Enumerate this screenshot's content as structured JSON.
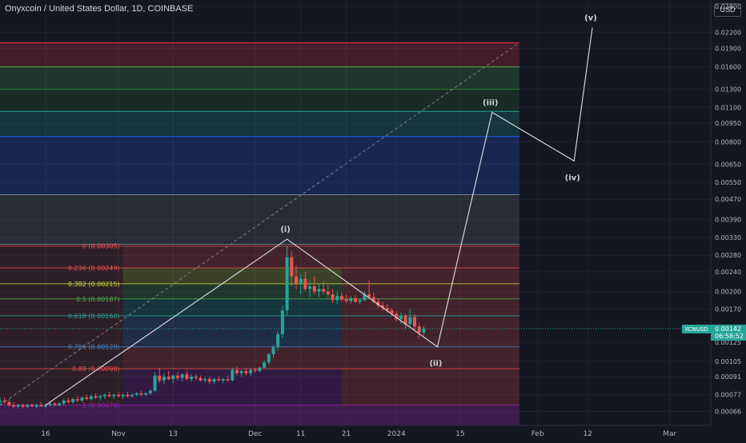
{
  "header": {
    "title": "Onyxcoin / United States Dollar, 1D, COINBASE",
    "currency_label": "USD"
  },
  "price_tag": {
    "symbol": "XCNUSD",
    "price": "0.00142",
    "countdown": "06:58:52",
    "color": "#26a69a"
  },
  "colors": {
    "background": "#131722",
    "grid": "#1f2330",
    "up": "#26a69a",
    "down": "#ef5350",
    "text": "#b2b5be",
    "wave": "#d1d4dc"
  },
  "chart_data": {
    "type": "candlestick",
    "title": "Onyxcoin / United States Dollar, 1D, COINBASE",
    "xlabel": "",
    "ylabel": "",
    "y_scale": "log",
    "ylim": [
      0.00058,
      0.0297
    ],
    "xlim": [
      "2023-10-06",
      "2024-03-10"
    ],
    "grid": true,
    "y_ticks": [
      "0.02800",
      "0.02200",
      "0.01900",
      "0.01600",
      "0.01300",
      "0.01100",
      "0.00950",
      "0.00800",
      "0.00650",
      "0.00550",
      "0.00470",
      "0.00390",
      "0.00330",
      "0.00280",
      "0.00240",
      "0.00200",
      "0.00170",
      "0.00125",
      "0.00105",
      "0.00091",
      "0.00077",
      "0.00066"
    ],
    "x_ticks": [
      {
        "date": "2023-10-16",
        "label": "16"
      },
      {
        "date": "2023-11-01",
        "label": "Nov"
      },
      {
        "date": "2023-11-13",
        "label": "13"
      },
      {
        "date": "2023-12-01",
        "label": "Dec"
      },
      {
        "date": "2023-12-11",
        "label": "11"
      },
      {
        "date": "2023-12-21",
        "label": "21"
      },
      {
        "date": "2024-01-01",
        "label": "2024"
      },
      {
        "date": "2024-01-15",
        "label": "15"
      },
      {
        "date": "2024-02-01",
        "label": "Feb"
      },
      {
        "date": "2024-02-12",
        "label": "12"
      },
      {
        "date": "2024-03-01",
        "label": "Mar"
      }
    ],
    "candles": [
      {
        "d": "2023-10-06",
        "o": 0.00072,
        "h": 0.00075,
        "l": 0.0007,
        "c": 0.00073
      },
      {
        "d": "2023-10-07",
        "o": 0.00073,
        "h": 0.00075,
        "l": 0.00071,
        "c": 0.00072
      },
      {
        "d": "2023-10-08",
        "o": 0.00072,
        "h": 0.00074,
        "l": 0.00069,
        "c": 0.0007
      },
      {
        "d": "2023-10-09",
        "o": 0.0007,
        "h": 0.00072,
        "l": 0.00068,
        "c": 0.00069
      },
      {
        "d": "2023-10-10",
        "o": 0.00069,
        "h": 0.00071,
        "l": 0.00068,
        "c": 0.0007
      },
      {
        "d": "2023-10-11",
        "o": 0.0007,
        "h": 0.00071,
        "l": 0.00068,
        "c": 0.00069
      },
      {
        "d": "2023-10-12",
        "o": 0.00069,
        "h": 0.00071,
        "l": 0.00068,
        "c": 0.0007
      },
      {
        "d": "2023-10-13",
        "o": 0.0007,
        "h": 0.00071,
        "l": 0.00069,
        "c": 0.00069
      },
      {
        "d": "2023-10-14",
        "o": 0.00069,
        "h": 0.00071,
        "l": 0.00068,
        "c": 0.0007
      },
      {
        "d": "2023-10-15",
        "o": 0.0007,
        "h": 0.00072,
        "l": 0.00069,
        "c": 0.00069
      },
      {
        "d": "2023-10-16",
        "o": 0.00069,
        "h": 0.00071,
        "l": 0.00068,
        "c": 0.0007
      },
      {
        "d": "2023-10-17",
        "o": 0.0007,
        "h": 0.00072,
        "l": 0.00069,
        "c": 0.00071
      },
      {
        "d": "2023-10-18",
        "o": 0.00071,
        "h": 0.00072,
        "l": 0.00069,
        "c": 0.0007
      },
      {
        "d": "2023-10-19",
        "o": 0.0007,
        "h": 0.00072,
        "l": 0.00069,
        "c": 0.00071
      },
      {
        "d": "2023-10-20",
        "o": 0.00071,
        "h": 0.00074,
        "l": 0.0007,
        "c": 0.00073
      },
      {
        "d": "2023-10-21",
        "o": 0.00073,
        "h": 0.00075,
        "l": 0.00071,
        "c": 0.00072
      },
      {
        "d": "2023-10-22",
        "o": 0.00072,
        "h": 0.00075,
        "l": 0.00071,
        "c": 0.00074
      },
      {
        "d": "2023-10-23",
        "o": 0.00074,
        "h": 0.00076,
        "l": 0.00072,
        "c": 0.00073
      },
      {
        "d": "2023-10-24",
        "o": 0.00073,
        "h": 0.00076,
        "l": 0.00072,
        "c": 0.00075
      },
      {
        "d": "2023-10-25",
        "o": 0.00075,
        "h": 0.00077,
        "l": 0.00073,
        "c": 0.00074
      },
      {
        "d": "2023-10-26",
        "o": 0.00074,
        "h": 0.00077,
        "l": 0.00073,
        "c": 0.00076
      },
      {
        "d": "2023-10-27",
        "o": 0.00076,
        "h": 0.00078,
        "l": 0.00074,
        "c": 0.00075
      },
      {
        "d": "2023-10-28",
        "o": 0.00075,
        "h": 0.00077,
        "l": 0.00073,
        "c": 0.00076
      },
      {
        "d": "2023-10-29",
        "o": 0.00076,
        "h": 0.00078,
        "l": 0.00074,
        "c": 0.00077
      },
      {
        "d": "2023-10-30",
        "o": 0.00077,
        "h": 0.00079,
        "l": 0.00075,
        "c": 0.00076
      },
      {
        "d": "2023-10-31",
        "o": 0.00076,
        "h": 0.00078,
        "l": 0.00074,
        "c": 0.00077
      },
      {
        "d": "2023-11-01",
        "o": 0.00077,
        "h": 0.00079,
        "l": 0.00075,
        "c": 0.00076
      },
      {
        "d": "2023-11-02",
        "o": 0.00076,
        "h": 0.00078,
        "l": 0.00074,
        "c": 0.00077
      },
      {
        "d": "2023-11-03",
        "o": 0.00077,
        "h": 0.00079,
        "l": 0.00075,
        "c": 0.00076
      },
      {
        "d": "2023-11-04",
        "o": 0.00076,
        "h": 0.00078,
        "l": 0.00075,
        "c": 0.00077
      },
      {
        "d": "2023-11-05",
        "o": 0.00077,
        "h": 0.00079,
        "l": 0.00076,
        "c": 0.00078
      },
      {
        "d": "2023-11-06",
        "o": 0.00078,
        "h": 0.0008,
        "l": 0.00076,
        "c": 0.00077
      },
      {
        "d": "2023-11-07",
        "o": 0.00077,
        "h": 0.00079,
        "l": 0.00076,
        "c": 0.00078
      },
      {
        "d": "2023-11-08",
        "o": 0.00078,
        "h": 0.00081,
        "l": 0.00077,
        "c": 0.0008
      },
      {
        "d": "2023-11-09",
        "o": 0.0008,
        "h": 0.00095,
        "l": 0.00079,
        "c": 0.00092
      },
      {
        "d": "2023-11-10",
        "o": 0.00092,
        "h": 0.00099,
        "l": 0.00086,
        "c": 0.00088
      },
      {
        "d": "2023-11-11",
        "o": 0.00088,
        "h": 0.00094,
        "l": 0.00085,
        "c": 0.00091
      },
      {
        "d": "2023-11-12",
        "o": 0.00091,
        "h": 0.00096,
        "l": 0.00088,
        "c": 0.00089
      },
      {
        "d": "2023-11-13",
        "o": 0.00089,
        "h": 0.00093,
        "l": 0.00086,
        "c": 0.00092
      },
      {
        "d": "2023-11-14",
        "o": 0.00092,
        "h": 0.00095,
        "l": 0.00088,
        "c": 0.0009
      },
      {
        "d": "2023-11-15",
        "o": 0.0009,
        "h": 0.00094,
        "l": 0.00087,
        "c": 0.00093
      },
      {
        "d": "2023-11-16",
        "o": 0.00093,
        "h": 0.00096,
        "l": 0.00088,
        "c": 0.00089
      },
      {
        "d": "2023-11-17",
        "o": 0.00089,
        "h": 0.00093,
        "l": 0.00087,
        "c": 0.00091
      },
      {
        "d": "2023-11-18",
        "o": 0.00091,
        "h": 0.00093,
        "l": 0.00088,
        "c": 0.0009
      },
      {
        "d": "2023-11-19",
        "o": 0.0009,
        "h": 0.00092,
        "l": 0.00087,
        "c": 0.00088
      },
      {
        "d": "2023-11-20",
        "o": 0.00088,
        "h": 0.00091,
        "l": 0.00086,
        "c": 0.00089
      },
      {
        "d": "2023-11-21",
        "o": 0.00089,
        "h": 0.00091,
        "l": 0.00085,
        "c": 0.00087
      },
      {
        "d": "2023-11-22",
        "o": 0.00087,
        "h": 0.0009,
        "l": 0.00085,
        "c": 0.00089
      },
      {
        "d": "2023-11-23",
        "o": 0.00089,
        "h": 0.00091,
        "l": 0.00087,
        "c": 0.00088
      },
      {
        "d": "2023-11-24",
        "o": 0.00088,
        "h": 0.0009,
        "l": 0.00086,
        "c": 0.00089
      },
      {
        "d": "2023-11-25",
        "o": 0.00089,
        "h": 0.00092,
        "l": 0.00087,
        "c": 0.00088
      },
      {
        "d": "2023-11-26",
        "o": 0.00088,
        "h": 0.00099,
        "l": 0.00087,
        "c": 0.00097
      },
      {
        "d": "2023-11-27",
        "o": 0.00097,
        "h": 0.001,
        "l": 0.00092,
        "c": 0.00094
      },
      {
        "d": "2023-11-28",
        "o": 0.00094,
        "h": 0.00097,
        "l": 0.00091,
        "c": 0.00096
      },
      {
        "d": "2023-11-29",
        "o": 0.00096,
        "h": 0.00099,
        "l": 0.00092,
        "c": 0.00094
      },
      {
        "d": "2023-11-30",
        "o": 0.00094,
        "h": 0.00098,
        "l": 0.00092,
        "c": 0.00097
      },
      {
        "d": "2023-12-01",
        "o": 0.00097,
        "h": 0.00099,
        "l": 0.00094,
        "c": 0.00096
      },
      {
        "d": "2023-12-02",
        "o": 0.00096,
        "h": 0.001,
        "l": 0.00095,
        "c": 0.00099
      },
      {
        "d": "2023-12-03",
        "o": 0.00099,
        "h": 0.00106,
        "l": 0.00098,
        "c": 0.00104
      },
      {
        "d": "2023-12-04",
        "o": 0.00104,
        "h": 0.00114,
        "l": 0.00102,
        "c": 0.00112
      },
      {
        "d": "2023-12-05",
        "o": 0.00112,
        "h": 0.00122,
        "l": 0.00108,
        "c": 0.0012
      },
      {
        "d": "2023-12-06",
        "o": 0.0012,
        "h": 0.00138,
        "l": 0.00116,
        "c": 0.00135
      },
      {
        "d": "2023-12-07",
        "o": 0.00135,
        "h": 0.00175,
        "l": 0.0013,
        "c": 0.00168
      },
      {
        "d": "2023-12-08",
        "o": 0.00168,
        "h": 0.00305,
        "l": 0.0016,
        "c": 0.00275
      },
      {
        "d": "2023-12-09",
        "o": 0.00275,
        "h": 0.0029,
        "l": 0.0021,
        "c": 0.0023
      },
      {
        "d": "2023-12-10",
        "o": 0.0023,
        "h": 0.00255,
        "l": 0.00205,
        "c": 0.00215
      },
      {
        "d": "2023-12-11",
        "o": 0.00215,
        "h": 0.00235,
        "l": 0.00195,
        "c": 0.00225
      },
      {
        "d": "2023-12-12",
        "o": 0.00225,
        "h": 0.0024,
        "l": 0.002,
        "c": 0.00205
      },
      {
        "d": "2023-12-13",
        "o": 0.00205,
        "h": 0.00222,
        "l": 0.0019,
        "c": 0.0021
      },
      {
        "d": "2023-12-14",
        "o": 0.0021,
        "h": 0.0023,
        "l": 0.00195,
        "c": 0.002
      },
      {
        "d": "2023-12-15",
        "o": 0.002,
        "h": 0.00215,
        "l": 0.0019,
        "c": 0.00205
      },
      {
        "d": "2023-12-16",
        "o": 0.00205,
        "h": 0.0022,
        "l": 0.00195,
        "c": 0.002
      },
      {
        "d": "2023-12-17",
        "o": 0.002,
        "h": 0.00212,
        "l": 0.0019,
        "c": 0.00195
      },
      {
        "d": "2023-12-18",
        "o": 0.00195,
        "h": 0.00205,
        "l": 0.0018,
        "c": 0.00185
      },
      {
        "d": "2023-12-19",
        "o": 0.00185,
        "h": 0.002,
        "l": 0.00178,
        "c": 0.00192
      },
      {
        "d": "2023-12-20",
        "o": 0.00192,
        "h": 0.00198,
        "l": 0.00182,
        "c": 0.00186
      },
      {
        "d": "2023-12-21",
        "o": 0.00186,
        "h": 0.00195,
        "l": 0.0018,
        "c": 0.00183
      },
      {
        "d": "2023-12-22",
        "o": 0.00183,
        "h": 0.00192,
        "l": 0.00179,
        "c": 0.00188
      },
      {
        "d": "2023-12-23",
        "o": 0.00188,
        "h": 0.00193,
        "l": 0.0018,
        "c": 0.00182
      },
      {
        "d": "2023-12-24",
        "o": 0.00182,
        "h": 0.00188,
        "l": 0.00178,
        "c": 0.00185
      },
      {
        "d": "2023-12-25",
        "o": 0.00185,
        "h": 0.002,
        "l": 0.00183,
        "c": 0.00195
      },
      {
        "d": "2023-12-26",
        "o": 0.00195,
        "h": 0.00222,
        "l": 0.00188,
        "c": 0.0019
      },
      {
        "d": "2023-12-27",
        "o": 0.0019,
        "h": 0.00198,
        "l": 0.0018,
        "c": 0.00182
      },
      {
        "d": "2023-12-28",
        "o": 0.00182,
        "h": 0.00188,
        "l": 0.00172,
        "c": 0.00176
      },
      {
        "d": "2023-12-29",
        "o": 0.00176,
        "h": 0.00182,
        "l": 0.00168,
        "c": 0.00172
      },
      {
        "d": "2023-12-30",
        "o": 0.00172,
        "h": 0.00178,
        "l": 0.00165,
        "c": 0.00168
      },
      {
        "d": "2023-12-31",
        "o": 0.00168,
        "h": 0.00172,
        "l": 0.0016,
        "c": 0.00163
      },
      {
        "d": "2024-01-01",
        "o": 0.00163,
        "h": 0.00167,
        "l": 0.00152,
        "c": 0.00155
      },
      {
        "d": "2024-01-02",
        "o": 0.00155,
        "h": 0.00165,
        "l": 0.00148,
        "c": 0.0016
      },
      {
        "d": "2024-01-03",
        "o": 0.0016,
        "h": 0.00163,
        "l": 0.00142,
        "c": 0.00148
      },
      {
        "d": "2024-01-04",
        "o": 0.00148,
        "h": 0.0017,
        "l": 0.00145,
        "c": 0.00158
      },
      {
        "d": "2024-01-05",
        "o": 0.00158,
        "h": 0.00162,
        "l": 0.0014,
        "c": 0.00145
      },
      {
        "d": "2024-01-06",
        "o": 0.00145,
        "h": 0.0015,
        "l": 0.0013,
        "c": 0.00137
      },
      {
        "d": "2024-01-07",
        "o": 0.00137,
        "h": 0.00146,
        "l": 0.00133,
        "c": 0.00142
      }
    ],
    "fib_retracement": {
      "low": 0.0007,
      "high": 0.00305,
      "x_start": "2023-11-02",
      "x_end": "2023-12-20",
      "shade_x_end": "2024-01-28",
      "levels": [
        {
          "ratio": "0",
          "label": "0 (0.00305)",
          "price": 0.00305,
          "color": "#ef5350"
        },
        {
          "ratio": "0.236",
          "label": "0.236 (0.00249)",
          "price": 0.00249,
          "color": "#ef5350"
        },
        {
          "ratio": "0.382",
          "label": "0.382 (0.00215)",
          "price": 0.00215,
          "color": "#cddc39"
        },
        {
          "ratio": "0.5",
          "label": "0.5 (0.00187)",
          "price": 0.00187,
          "color": "#4caf50"
        },
        {
          "ratio": "0.618",
          "label": "0.618 (0.00160)",
          "price": 0.0016,
          "color": "#26a69a"
        },
        {
          "ratio": "0.786",
          "label": "0.786 (0.00120)",
          "price": 0.0012,
          "color": "#4a86c8"
        },
        {
          "ratio": "0.88",
          "label": "0.88 (0.00098)",
          "price": 0.00098,
          "color": "#ef5350"
        },
        {
          "ratio": "1",
          "label": "1 (0.00070)",
          "price": 0.0007,
          "color": "#9c27b0"
        }
      ]
    },
    "fib_extension_bands": {
      "x_start": "2023-10-06",
      "x_end": "2024-01-28",
      "bands": [
        {
          "top": 0.02,
          "bottom": 0.016,
          "color": "#f23645"
        },
        {
          "top": 0.016,
          "bottom": 0.013,
          "color": "#4caf50"
        },
        {
          "top": 0.013,
          "bottom": 0.0106,
          "color": "#2e7d32"
        },
        {
          "top": 0.0106,
          "bottom": 0.0084,
          "color": "#26a69a"
        },
        {
          "top": 0.0084,
          "bottom": 0.0049,
          "color": "#2962ff"
        },
        {
          "top": 0.0049,
          "bottom": 0.0031,
          "color": "#787b86"
        }
      ]
    },
    "trend_line": {
      "from": {
        "date": "2023-10-06",
        "price": 0.0007
      },
      "to": {
        "date": "2024-01-28",
        "price": 0.02
      }
    },
    "elliott_wave": [
      {
        "label": "",
        "date": "2023-10-16",
        "price": 0.0007
      },
      {
        "label": "(i)",
        "date": "2023-12-08",
        "price": 0.00325
      },
      {
        "label": "(ii)",
        "date": "2024-01-10",
        "price": 0.0012
      },
      {
        "label": "(iii)",
        "date": "2024-01-22",
        "price": 0.0105
      },
      {
        "label": "(iv)",
        "date": "2024-02-09",
        "price": 0.0067
      },
      {
        "label": "(v)",
        "date": "2024-02-13",
        "price": 0.023
      }
    ],
    "current_price": 0.00142
  }
}
